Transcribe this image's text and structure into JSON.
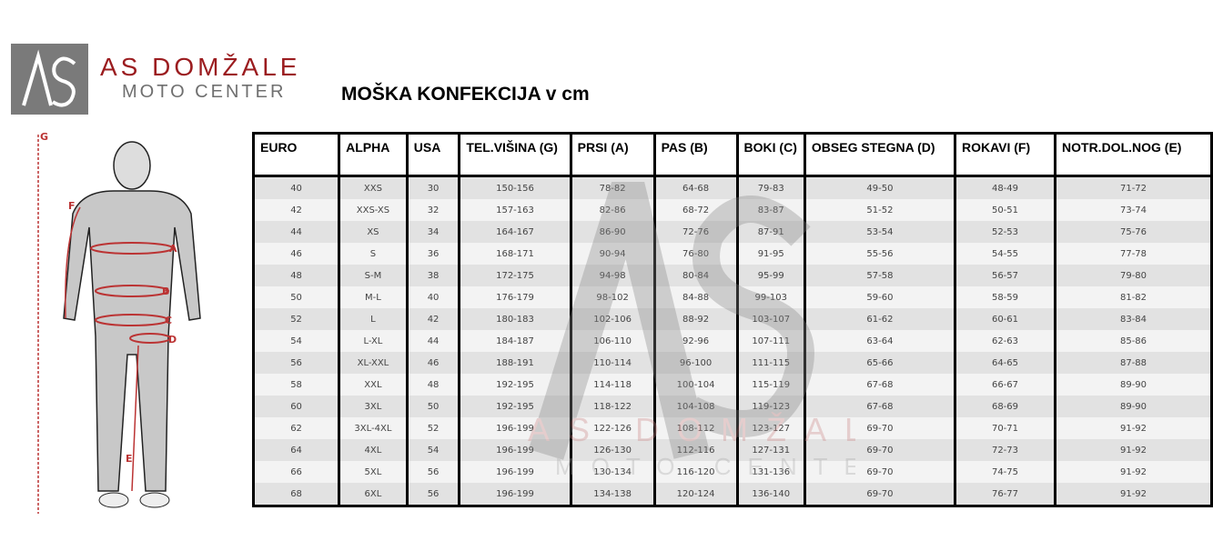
{
  "logo": {
    "monogram": "AS",
    "line1": "AS DOMŽALE",
    "line2": "MOTO CENTER"
  },
  "title": "MOŠKA KONFEKCIJA v cm",
  "figure_labels": [
    "G",
    "F",
    "A",
    "B",
    "C",
    "D",
    "E"
  ],
  "table": {
    "headers": [
      "EURO",
      "ALPHA",
      "USA",
      "TEL.VIŠINA (G)",
      "PRSI (A)",
      "PAS (B)",
      "BOKI (C)",
      "OBSEG STEGNA (D)",
      "ROKAVI (F)",
      "NOTR.DOL.NOG (E)"
    ],
    "rows": [
      [
        "40",
        "XXS",
        "30",
        "150-156",
        "78-82",
        "64-68",
        "79-83",
        "49-50",
        "48-49",
        "71-72"
      ],
      [
        "42",
        "XXS-XS",
        "32",
        "157-163",
        "82-86",
        "68-72",
        "83-87",
        "51-52",
        "50-51",
        "73-74"
      ],
      [
        "44",
        "XS",
        "34",
        "164-167",
        "86-90",
        "72-76",
        "87-91",
        "53-54",
        "52-53",
        "75-76"
      ],
      [
        "46",
        "S",
        "36",
        "168-171",
        "90-94",
        "76-80",
        "91-95",
        "55-56",
        "54-55",
        "77-78"
      ],
      [
        "48",
        "S-M",
        "38",
        "172-175",
        "94-98",
        "80-84",
        "95-99",
        "57-58",
        "56-57",
        "79-80"
      ],
      [
        "50",
        "M-L",
        "40",
        "176-179",
        "98-102",
        "84-88",
        "99-103",
        "59-60",
        "58-59",
        "81-82"
      ],
      [
        "52",
        "L",
        "42",
        "180-183",
        "102-106",
        "88-92",
        "103-107",
        "61-62",
        "60-61",
        "83-84"
      ],
      [
        "54",
        "L-XL",
        "44",
        "184-187",
        "106-110",
        "92-96",
        "107-111",
        "63-64",
        "62-63",
        "85-86"
      ],
      [
        "56",
        "XL-XXL",
        "46",
        "188-191",
        "110-114",
        "96-100",
        "111-115",
        "65-66",
        "64-65",
        "87-88"
      ],
      [
        "58",
        "XXL",
        "48",
        "192-195",
        "114-118",
        "100-104",
        "115-119",
        "67-68",
        "66-67",
        "89-90"
      ],
      [
        "60",
        "3XL",
        "50",
        "192-195",
        "118-122",
        "104-108",
        "119-123",
        "67-68",
        "68-69",
        "89-90"
      ],
      [
        "62",
        "3XL-4XL",
        "52",
        "196-199",
        "122-126",
        "108-112",
        "123-127",
        "69-70",
        "70-71",
        "91-92"
      ],
      [
        "64",
        "4XL",
        "54",
        "196-199",
        "126-130",
        "112-116",
        "127-131",
        "69-70",
        "72-73",
        "91-92"
      ],
      [
        "66",
        "5XL",
        "56",
        "196-199",
        "130-134",
        "116-120",
        "131-136",
        "69-70",
        "74-75",
        "91-92"
      ],
      [
        "68",
        "6XL",
        "56",
        "196-199",
        "134-138",
        "120-124",
        "136-140",
        "69-70",
        "76-77",
        "91-92"
      ]
    ]
  },
  "colors": {
    "brand_red": "#9b1c1f",
    "brand_gray": "#7a7a7a"
  }
}
